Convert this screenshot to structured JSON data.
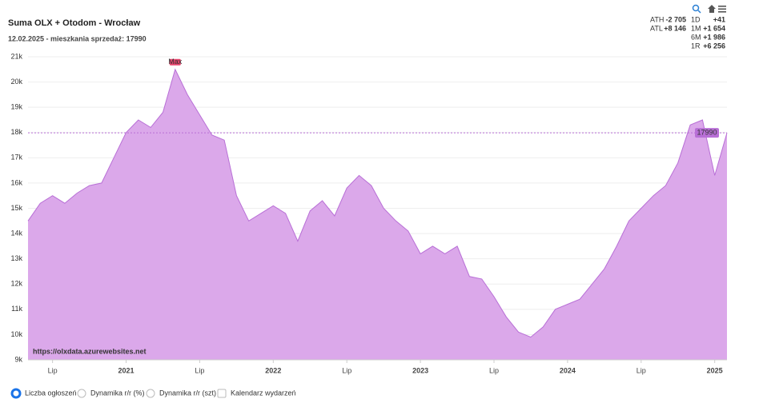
{
  "chart_data": {
    "type": "area",
    "title": "Suma OLX + Otodom - Wrocław",
    "subtitle": "12.02.2025 - mieszkania sprzedaż: 17990",
    "watermark": "https://olxdata.azurewebsites.net",
    "color": "#dba8ea",
    "line_color": "#b86fd6",
    "x": [
      "2020-05",
      "2020-06",
      "2020-07",
      "2020-08",
      "2020-09",
      "2020-10",
      "2020-11",
      "2020-12",
      "2021-01",
      "2021-02",
      "2021-03",
      "2021-04",
      "2021-05",
      "2021-06",
      "2021-07",
      "2021-08",
      "2021-09",
      "2021-10",
      "2021-11",
      "2021-12",
      "2022-01",
      "2022-02",
      "2022-03",
      "2022-04",
      "2022-05",
      "2022-06",
      "2022-07",
      "2022-08",
      "2022-09",
      "2022-10",
      "2022-11",
      "2022-12",
      "2023-01",
      "2023-02",
      "2023-03",
      "2023-04",
      "2023-05",
      "2023-06",
      "2023-07",
      "2023-08",
      "2023-09",
      "2023-10",
      "2023-11",
      "2023-12",
      "2024-01",
      "2024-02",
      "2024-03",
      "2024-04",
      "2024-05",
      "2024-06",
      "2024-07",
      "2024-08",
      "2024-09",
      "2024-10",
      "2024-11",
      "2024-12",
      "2025-01",
      "2025-02"
    ],
    "values": [
      14500,
      15200,
      15500,
      15200,
      15600,
      15900,
      16000,
      17000,
      18000,
      18500,
      18200,
      18800,
      20500,
      19500,
      18700,
      17900,
      17700,
      15500,
      14500,
      14800,
      15100,
      14800,
      13700,
      14900,
      15300,
      14700,
      15800,
      16300,
      15900,
      15000,
      14500,
      14100,
      13200,
      13500,
      13200,
      13500,
      12300,
      12200,
      11500,
      10700,
      10100,
      9900,
      10300,
      11000,
      11200,
      11400,
      12000,
      12600,
      13500,
      14500,
      15000,
      15500,
      15900,
      16800,
      18300,
      18500,
      16300,
      17990
    ],
    "xlim": [
      "2020-05",
      "2025-02"
    ],
    "xticks": [
      {
        "value": "2020-07",
        "label": "Lip"
      },
      {
        "value": "2021-01",
        "label": "2021"
      },
      {
        "value": "2021-07",
        "label": "Lip"
      },
      {
        "value": "2022-01",
        "label": "2022"
      },
      {
        "value": "2022-07",
        "label": "Lip"
      },
      {
        "value": "2023-01",
        "label": "2023"
      },
      {
        "value": "2023-07",
        "label": "Lip"
      },
      {
        "value": "2024-01",
        "label": "2024"
      },
      {
        "value": "2024-07",
        "label": "Lip"
      },
      {
        "value": "2025-01",
        "label": "2025"
      }
    ],
    "ylim": [
      9000,
      21000
    ],
    "yticks": [
      {
        "value": 9000,
        "label": "9k"
      },
      {
        "value": 10000,
        "label": "10k"
      },
      {
        "value": 11000,
        "label": "11k"
      },
      {
        "value": 12000,
        "label": "12k"
      },
      {
        "value": 13000,
        "label": "13k"
      },
      {
        "value": 14000,
        "label": "14k"
      },
      {
        "value": 15000,
        "label": "15k"
      },
      {
        "value": 16000,
        "label": "16k"
      },
      {
        "value": 17000,
        "label": "17k"
      },
      {
        "value": 18000,
        "label": "18k"
      },
      {
        "value": 19000,
        "label": "19k"
      },
      {
        "value": 20000,
        "label": "20k"
      },
      {
        "value": 21000,
        "label": "21k"
      }
    ],
    "grid": true,
    "max_label": "Max",
    "reference_line": 17990,
    "stats_left": [
      {
        "label": "ATH",
        "value": "-2 705"
      },
      {
        "label": "ATL",
        "value": "+8 146"
      }
    ],
    "stats_right": [
      {
        "label": "1D",
        "value": "+41"
      },
      {
        "label": "1M",
        "value": "+1 654"
      },
      {
        "label": "6M",
        "value": "+1 986"
      },
      {
        "label": "1R",
        "value": "+6 256"
      }
    ],
    "options": [
      "Liczba ogłoszeń",
      "Dynamika r/r (%)",
      "Dynamika r/r (szt)",
      "Kalendarz wydarzeń"
    ],
    "selected_option": 0
  }
}
